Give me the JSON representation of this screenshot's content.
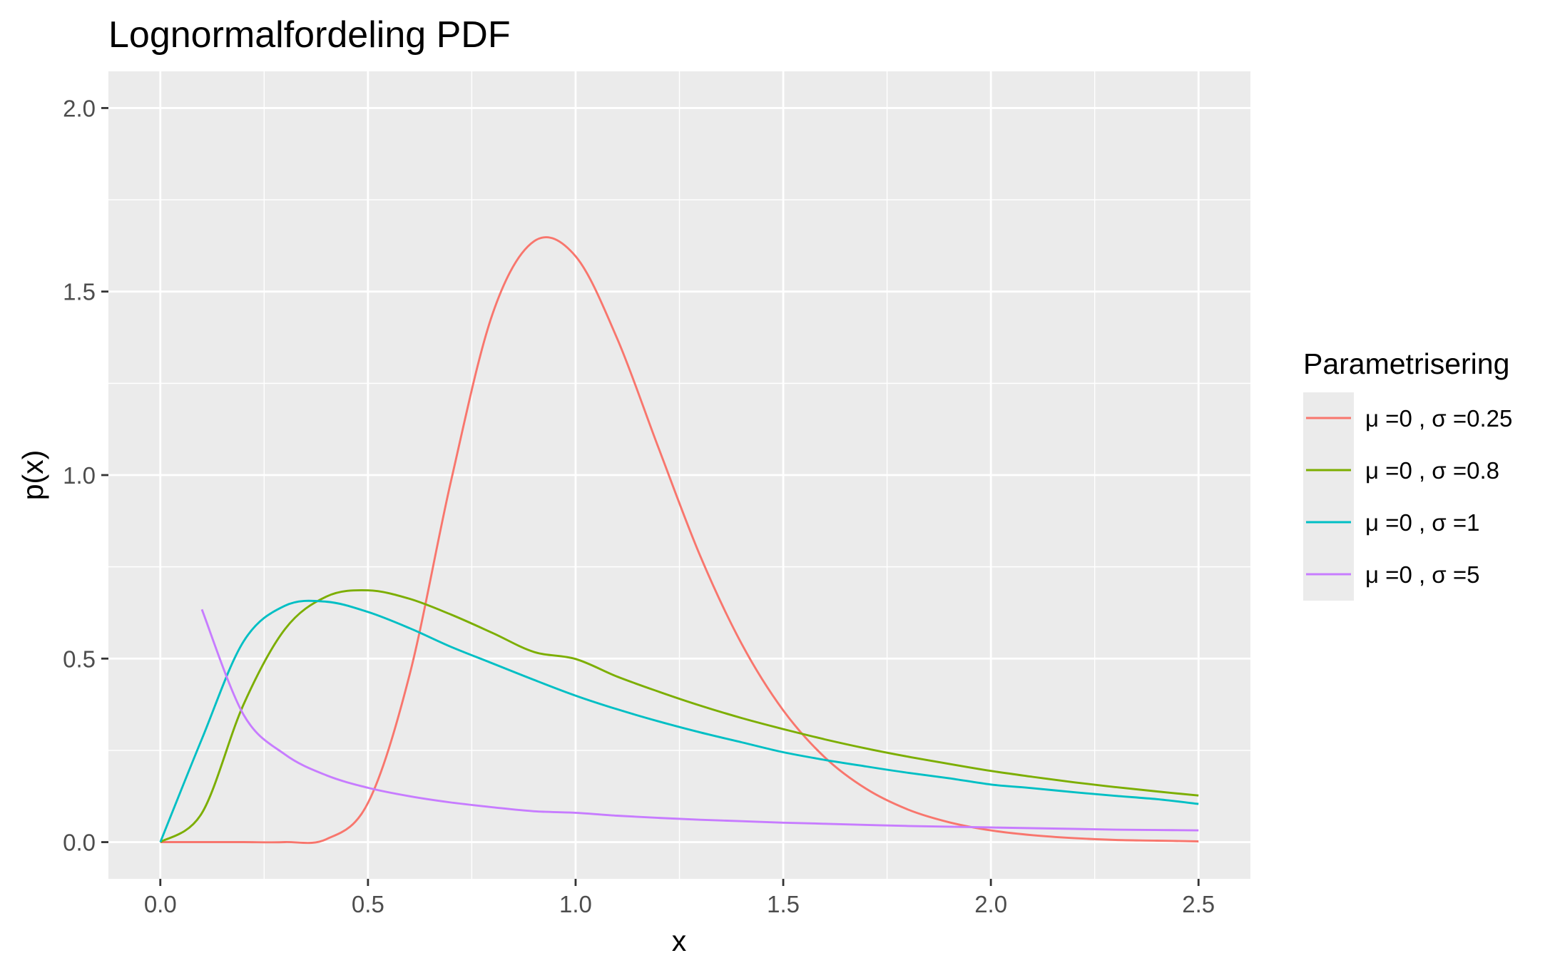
{
  "chart_data": {
    "type": "line",
    "title": "Lognormalfordeling PDF",
    "xlabel": "x",
    "ylabel": "p(x)",
    "xlim": [
      -0.125,
      2.625
    ],
    "ylim": [
      -0.1,
      2.1
    ],
    "x_ticks": [
      0.0,
      0.5,
      1.0,
      1.5,
      2.0,
      2.5
    ],
    "x_tick_labels": [
      "0.0",
      "0.5",
      "1.0",
      "1.5",
      "2.0",
      "2.5"
    ],
    "y_ticks": [
      0.0,
      0.5,
      1.0,
      1.5,
      2.0
    ],
    "y_tick_labels": [
      "0.0",
      "0.5",
      "1.0",
      "1.5",
      "2.0"
    ],
    "grid": true,
    "panel_background": "#EBEBEB",
    "legend": {
      "title": "Parametrisering",
      "position": "right"
    },
    "x": [
      0.0,
      0.1,
      0.2,
      0.3,
      0.4,
      0.5,
      0.6,
      0.7,
      0.8,
      0.9,
      1.0,
      1.1,
      1.2,
      1.3,
      1.4,
      1.5,
      1.6,
      1.7,
      1.8,
      1.9,
      2.0,
      2.1,
      2.2,
      2.3,
      2.4,
      2.5
    ],
    "series": [
      {
        "name": "μ =0 ,  σ =0.25",
        "mu": 0,
        "sigma": 0.25,
        "color": "#F8766D",
        "values": [
          0.0,
          0.0,
          0.0,
          0.0,
          0.008,
          0.107,
          0.455,
          0.984,
          1.439,
          1.637,
          1.596,
          1.372,
          1.073,
          0.78,
          0.54,
          0.359,
          0.231,
          0.145,
          0.089,
          0.054,
          0.032,
          0.019,
          0.011,
          0.006,
          0.004,
          0.002
        ]
      },
      {
        "name": "μ =0 ,  σ =0.8",
        "mu": 0,
        "sigma": 0.8,
        "color": "#7CAE00",
        "values": [
          0.0,
          0.079,
          0.374,
          0.58,
          0.669,
          0.686,
          0.663,
          0.62,
          0.57,
          0.518,
          0.499,
          0.451,
          0.41,
          0.372,
          0.338,
          0.308,
          0.28,
          0.255,
          0.233,
          0.213,
          0.194,
          0.178,
          0.163,
          0.15,
          0.138,
          0.127
        ]
      },
      {
        "name": "μ =0 ,  σ =1",
        "mu": 0,
        "sigma": 1,
        "color": "#00BFC4",
        "values": [
          0.0,
          0.281,
          0.546,
          0.644,
          0.655,
          0.627,
          0.583,
          0.532,
          0.487,
          0.442,
          0.399,
          0.362,
          0.329,
          0.299,
          0.272,
          0.245,
          0.224,
          0.206,
          0.189,
          0.174,
          0.157,
          0.147,
          0.136,
          0.126,
          0.117,
          0.104
        ]
      },
      {
        "name": "μ =0 ,  σ =5",
        "mu": 0,
        "sigma": 5,
        "color": "#C77CFF",
        "values": [
          null,
          0.634,
          0.348,
          0.239,
          0.182,
          0.148,
          0.125,
          0.108,
          0.095,
          0.084,
          0.08,
          0.072,
          0.066,
          0.061,
          0.057,
          0.053,
          0.05,
          0.047,
          0.044,
          0.042,
          0.04,
          0.038,
          0.036,
          0.034,
          0.033,
          0.032
        ]
      }
    ]
  }
}
